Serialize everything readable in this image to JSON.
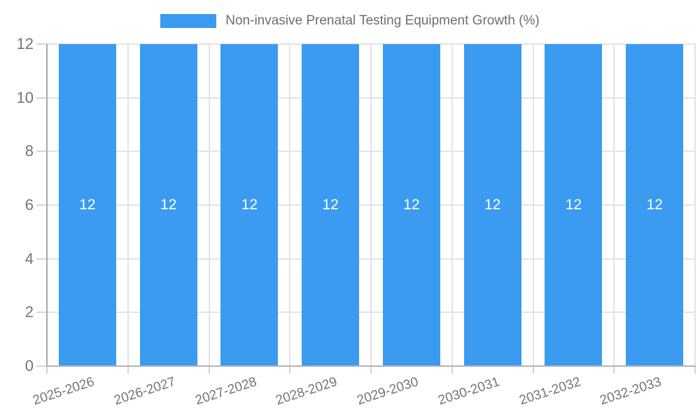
{
  "chart_data": {
    "type": "bar",
    "title": "Non-invasive Prenatal Testing Equipment Growth (%)",
    "categories": [
      "2025-2026",
      "2026-2027",
      "2027-2028",
      "2028-2029",
      "2029-2030",
      "2030-2031",
      "2031-2032",
      "2032-2033"
    ],
    "series": [
      {
        "name": "Non-invasive Prenatal Testing Equipment Growth (%)",
        "values": [
          12,
          12,
          12,
          12,
          12,
          12,
          12,
          12
        ]
      }
    ],
    "bar_labels": [
      "12",
      "12",
      "12",
      "12",
      "12",
      "12",
      "12",
      "12"
    ],
    "xlabel": "",
    "ylabel": "",
    "ylim": [
      0,
      12
    ],
    "yticks": [
      0,
      2,
      4,
      6,
      8,
      10,
      12
    ],
    "grid": true,
    "legend_position": "top",
    "colors": {
      "bar": "#3B9BF0",
      "bar_value_label": "#FFFFFF",
      "grid_line": "#E3E3E3",
      "tick_mark": "#D4D4D4",
      "y_axis_line": "#A6A6A6",
      "x_axis_line": "#B4B4B4",
      "tick_label": "#757575",
      "legend_text": "#6B6E73",
      "background": "#FFFFFF"
    }
  }
}
